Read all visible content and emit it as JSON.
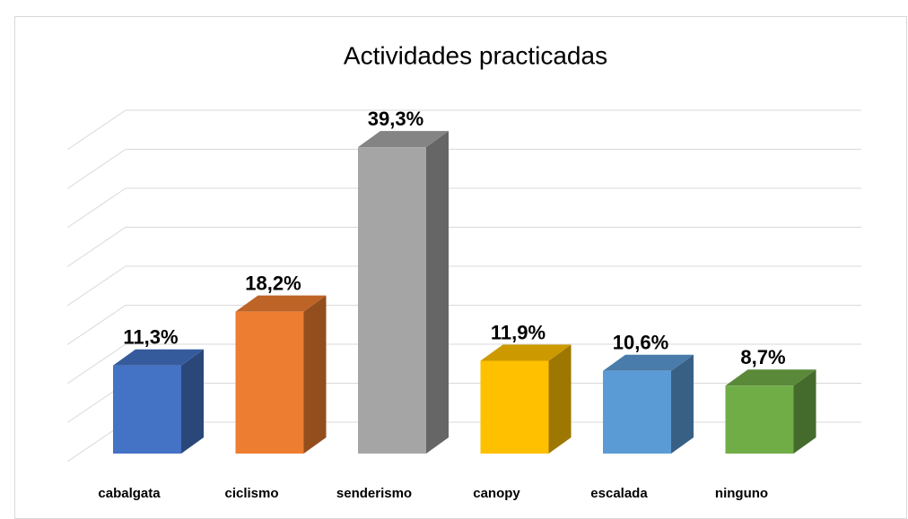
{
  "chart_data": {
    "type": "bar3d",
    "title": "Actividades practicadas",
    "categories": [
      "cabalgata",
      "ciclismo",
      "senderismo",
      "canopy",
      "escalada",
      "ninguno"
    ],
    "values": [
      11.3,
      18.2,
      39.3,
      11.9,
      10.6,
      8.7
    ],
    "value_labels": [
      "11,3%",
      "18,2%",
      "39,3%",
      "11,9%",
      "10,6%",
      "8,7%"
    ],
    "colors": [
      "#4472c4",
      "#ed7d31",
      "#a5a5a5",
      "#ffc000",
      "#5b9bd5",
      "#70ad47"
    ],
    "ylim": [
      0,
      40
    ],
    "yticks": [
      0,
      5,
      10,
      15,
      20,
      25,
      30,
      35,
      40
    ],
    "grid": true
  }
}
